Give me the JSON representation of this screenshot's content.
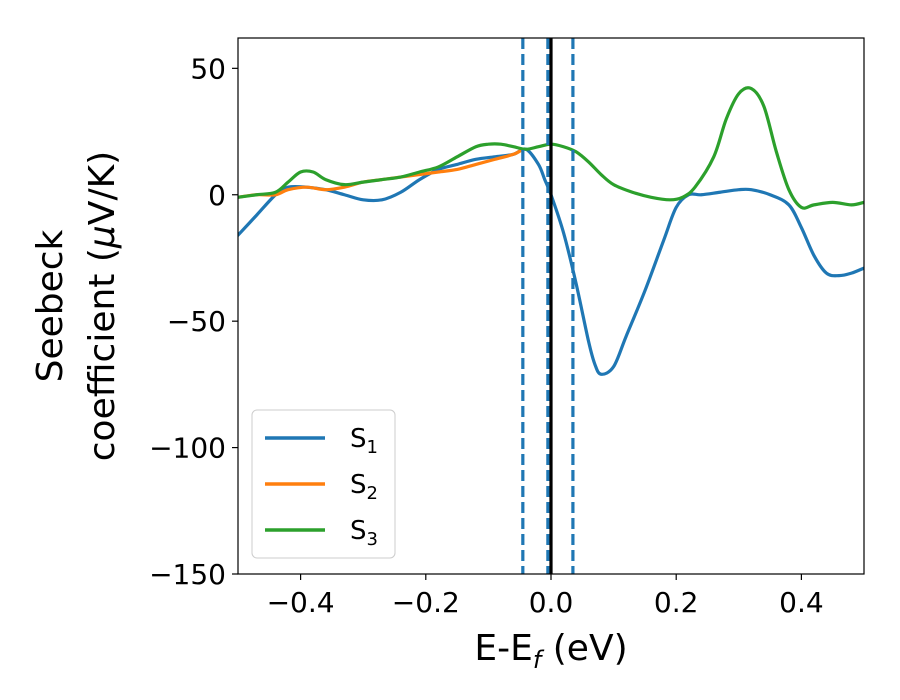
{
  "chart_data": {
    "type": "line",
    "title": "",
    "xlabel": {
      "base": "E-E",
      "sub": "f",
      "tail": " (eV)"
    },
    "ylabel": {
      "line1": "Seebeck",
      "line2_pre": "coefficient  (",
      "mu": "μ",
      "line2_post": "V/K)"
    },
    "xlim": [
      -0.5,
      0.5
    ],
    "ylim": [
      -150,
      62
    ],
    "xticks": [
      -0.4,
      -0.2,
      0.0,
      0.2,
      0.4
    ],
    "xtick_labels": [
      "−0.4",
      "−0.2",
      "0.0",
      "0.2",
      "0.4"
    ],
    "yticks": [
      50,
      0,
      -50,
      -100,
      -150
    ],
    "ytick_labels": [
      "50",
      "0",
      "−50",
      "−100",
      "−150"
    ],
    "grid": false,
    "legend_position": "lower-left",
    "vlines": [
      {
        "x": -0.045,
        "style": "dashed",
        "color": "#1f77b4"
      },
      {
        "x": -0.005,
        "style": "dashed",
        "color": "#1f77b4"
      },
      {
        "x": 0.035,
        "style": "dashed",
        "color": "#1f77b4"
      },
      {
        "x": 0.0,
        "style": "solid",
        "color": "#000000"
      }
    ],
    "series": [
      {
        "name": "S",
        "sub": "1",
        "color": "#1f77b4",
        "x": [
          -0.5,
          -0.47,
          -0.44,
          -0.42,
          -0.39,
          -0.36,
          -0.33,
          -0.3,
          -0.27,
          -0.24,
          -0.21,
          -0.18,
          -0.15,
          -0.12,
          -0.09,
          -0.06,
          -0.04,
          -0.02,
          -0.01,
          0.0,
          0.02,
          0.04,
          0.06,
          0.07,
          0.08,
          0.1,
          0.12,
          0.15,
          0.18,
          0.2,
          0.22,
          0.24,
          0.27,
          0.3,
          0.32,
          0.35,
          0.38,
          0.4,
          0.42,
          0.44,
          0.46,
          0.48,
          0.5
        ],
        "y": [
          -16,
          -8,
          0,
          3,
          3,
          2,
          0,
          -2,
          -2,
          1,
          6,
          10,
          12,
          14,
          15,
          16,
          18,
          12,
          6,
          0,
          -15,
          -35,
          -58,
          -67,
          -71,
          -68,
          -56,
          -38,
          -18,
          -5,
          0,
          0,
          1,
          2,
          2,
          0,
          -4,
          -13,
          -24,
          -31,
          -32,
          -31,
          -29
        ]
      },
      {
        "name": "S",
        "sub": "2",
        "color": "#ff7f0e",
        "x": [
          -0.5,
          -0.47,
          -0.44,
          -0.42,
          -0.39,
          -0.36,
          -0.33,
          -0.3,
          -0.27,
          -0.24,
          -0.21,
          -0.18,
          -0.15,
          -0.12,
          -0.09,
          -0.06,
          -0.045
        ],
        "y": [
          -1,
          0,
          0,
          2,
          3,
          2,
          3,
          5,
          6,
          7,
          8,
          9,
          10,
          12,
          14,
          16,
          18
        ]
      },
      {
        "name": "S",
        "sub": "3",
        "color": "#2ca02c",
        "x": [
          -0.5,
          -0.47,
          -0.44,
          -0.42,
          -0.4,
          -0.38,
          -0.36,
          -0.33,
          -0.3,
          -0.27,
          -0.24,
          -0.21,
          -0.18,
          -0.15,
          -0.12,
          -0.1,
          -0.08,
          -0.06,
          -0.04,
          -0.02,
          0.0,
          0.02,
          0.04,
          0.06,
          0.08,
          0.1,
          0.13,
          0.16,
          0.19,
          0.21,
          0.23,
          0.26,
          0.28,
          0.3,
          0.32,
          0.34,
          0.36,
          0.38,
          0.4,
          0.42,
          0.45,
          0.48,
          0.5
        ],
        "y": [
          -1,
          0,
          1,
          5,
          9,
          9,
          6,
          4,
          5,
          6,
          7,
          9,
          11,
          15,
          19,
          20,
          20,
          19,
          18,
          19,
          20,
          19,
          17,
          13,
          8,
          4,
          1,
          -1,
          -2,
          -1,
          3,
          15,
          30,
          40,
          42,
          35,
          17,
          2,
          -5,
          -4,
          -3,
          -4,
          -3
        ]
      }
    ]
  }
}
